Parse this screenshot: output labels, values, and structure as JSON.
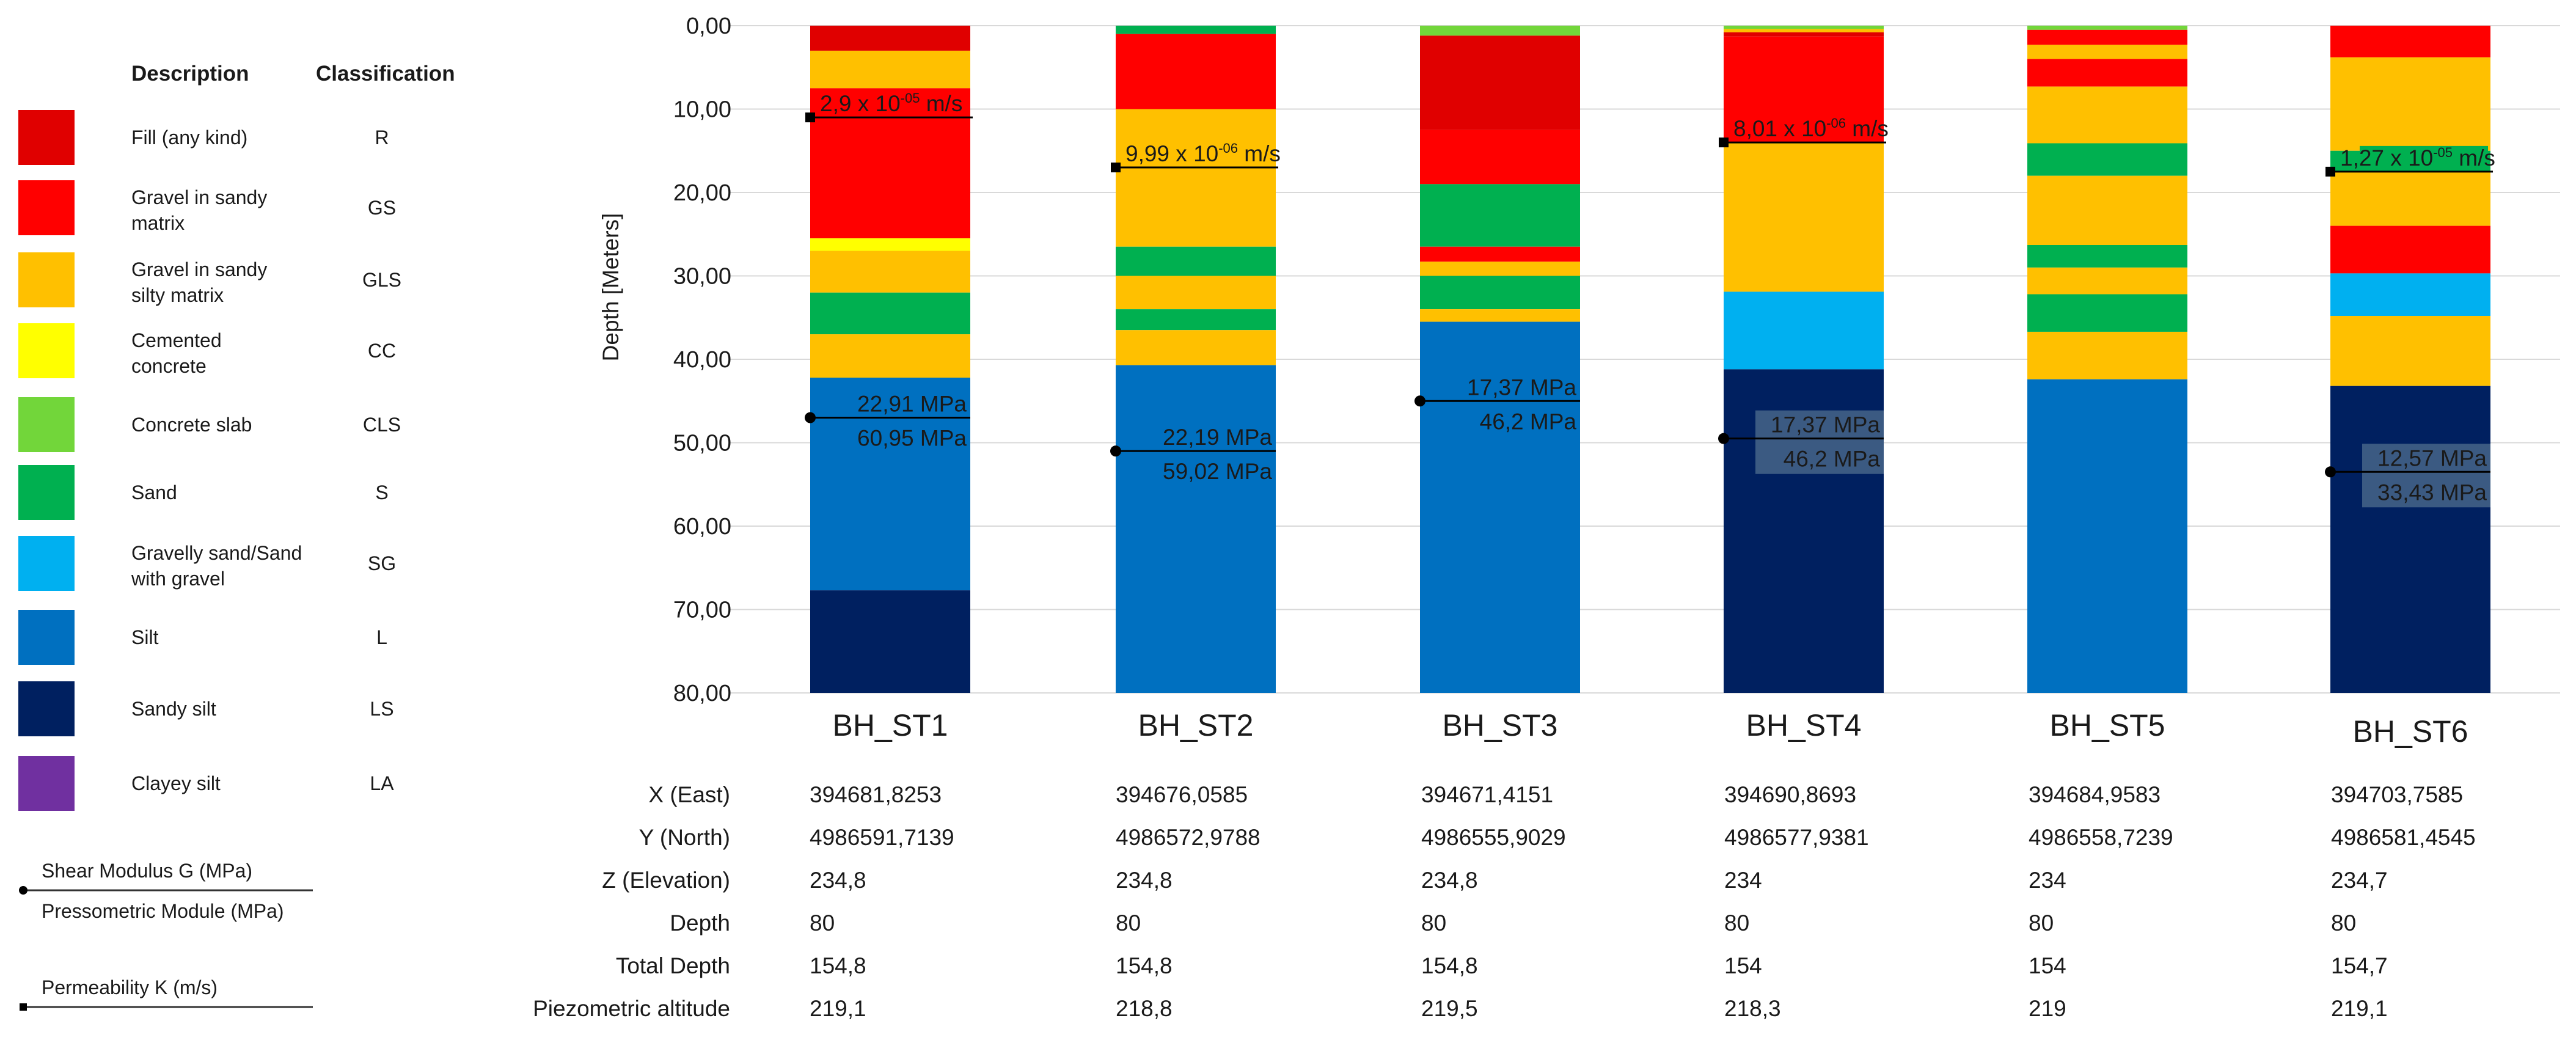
{
  "chart_data": {
    "type": "bar",
    "subtype": "stacked-borehole-columns",
    "ylabel": "Depth [Meters]",
    "ylim": [
      0,
      80
    ],
    "y_inverted": true,
    "y_ticks": [
      "0,00",
      "10,00",
      "20,00",
      "30,00",
      "40,00",
      "50,00",
      "60,00",
      "70,00",
      "80,00"
    ],
    "grid": true,
    "categories": [
      "BH_ST1",
      "BH_ST2",
      "BH_ST3",
      "BH_ST4",
      "BH_ST5",
      "BH_ST6"
    ],
    "legend": {
      "header_description": "Description",
      "header_classification": "Classification",
      "items": [
        {
          "code": "R",
          "description": "Fill (any kind)",
          "color": "#E00000"
        },
        {
          "code": "GS",
          "description": "Gravel in sandy matrix",
          "color": "#FF0000"
        },
        {
          "code": "GLS",
          "description": "Gravel in sandy silty matrix",
          "color": "#FFC000"
        },
        {
          "code": "CC",
          "description": "Cemented concrete",
          "color": "#FFFF00"
        },
        {
          "code": "CLS",
          "description": "Concrete slab",
          "color": "#72D63A"
        },
        {
          "code": "S",
          "description": "Sand",
          "color": "#00B050"
        },
        {
          "code": "SG",
          "description": "Gravelly sand/Sand with gravel",
          "color": "#00B0F0"
        },
        {
          "code": "L",
          "description": "Silt",
          "color": "#0070C0"
        },
        {
          "code": "LS",
          "description": "Sandy silt",
          "color": "#002060"
        },
        {
          "code": "LA",
          "description": "Clayey silt",
          "color": "#7030A0"
        }
      ],
      "shear_label": "Shear Modulus G (MPa)",
      "pressiometric_label": "Pressometric Module (MPa)",
      "permeability_label": "Permeability K (m/s)"
    },
    "boreholes": [
      {
        "name": "BH_ST1",
        "layers": [
          {
            "code": "R",
            "top": 0,
            "bottom": 3
          },
          {
            "code": "GLS",
            "top": 3,
            "bottom": 7.5
          },
          {
            "code": "GS",
            "top": 7.5,
            "bottom": 25.5
          },
          {
            "code": "CC",
            "top": 25.5,
            "bottom": 27
          },
          {
            "code": "GLS",
            "top": 27,
            "bottom": 32
          },
          {
            "code": "S",
            "top": 32,
            "bottom": 37
          },
          {
            "code": "GLS",
            "top": 37,
            "bottom": 42.2
          },
          {
            "code": "L",
            "top": 42.2,
            "bottom": 67.7
          },
          {
            "code": "LS",
            "top": 67.7,
            "bottom": 80
          }
        ],
        "permeability": {
          "depth": 11,
          "mantissa": "2,9",
          "exponent": "-05",
          "unit": "m/s"
        },
        "modulus": {
          "depth": 47,
          "shear": "22,91 MPa",
          "pressiometric": "60,95 MPa"
        }
      },
      {
        "name": "BH_ST2",
        "layers": [
          {
            "code": "S",
            "top": 0,
            "bottom": 1
          },
          {
            "code": "GS",
            "top": 1,
            "bottom": 10
          },
          {
            "code": "GLS",
            "top": 10,
            "bottom": 26.5
          },
          {
            "code": "S",
            "top": 26.5,
            "bottom": 30
          },
          {
            "code": "GLS",
            "top": 30,
            "bottom": 34
          },
          {
            "code": "S",
            "top": 34,
            "bottom": 36.5
          },
          {
            "code": "GLS",
            "top": 36.5,
            "bottom": 40.7
          },
          {
            "code": "L",
            "top": 40.7,
            "bottom": 80
          }
        ],
        "permeability": {
          "depth": 17,
          "mantissa": "9,99",
          "exponent": "-06",
          "unit": "m/s"
        },
        "modulus": {
          "depth": 51,
          "shear": "22,19 MPa",
          "pressiometric": "59,02 MPa"
        }
      },
      {
        "name": "BH_ST3",
        "layers": [
          {
            "code": "CLS",
            "top": 0,
            "bottom": 1.2
          },
          {
            "code": "R",
            "top": 1.2,
            "bottom": 12.5
          },
          {
            "code": "GS",
            "top": 12.5,
            "bottom": 19
          },
          {
            "code": "S",
            "top": 19,
            "bottom": 26.5
          },
          {
            "code": "GS",
            "top": 26.5,
            "bottom": 28.3
          },
          {
            "code": "GLS",
            "top": 28.3,
            "bottom": 30
          },
          {
            "code": "S",
            "top": 30,
            "bottom": 34
          },
          {
            "code": "GLS",
            "top": 34,
            "bottom": 35.5
          },
          {
            "code": "L",
            "top": 35.5,
            "bottom": 80
          }
        ],
        "permeability": null,
        "modulus": {
          "depth": 45,
          "shear": "17,37 MPa",
          "pressiometric": "46,2 MPa"
        }
      },
      {
        "name": "BH_ST4",
        "layers": [
          {
            "code": "CLS",
            "top": 0,
            "bottom": 0.4
          },
          {
            "code": "GLS",
            "top": 0.4,
            "bottom": 0.8
          },
          {
            "code": "R",
            "top": 0.8,
            "bottom": 1.3
          },
          {
            "code": "GS",
            "top": 1.3,
            "bottom": 14
          },
          {
            "code": "GLS",
            "top": 14,
            "bottom": 31.9
          },
          {
            "code": "SG",
            "top": 31.9,
            "bottom": 41.2
          },
          {
            "code": "LS",
            "top": 41.2,
            "bottom": 80
          }
        ],
        "permeability": {
          "depth": 14,
          "mantissa": "8,01",
          "exponent": "-06",
          "unit": "m/s"
        },
        "modulus": {
          "depth": 49.5,
          "shear": "17,37 MPa",
          "pressiometric": "46,2 MPa"
        }
      },
      {
        "name": "BH_ST5",
        "layers": [
          {
            "code": "CLS",
            "top": 0,
            "bottom": 0.5
          },
          {
            "code": "GS",
            "top": 0.5,
            "bottom": 2.3
          },
          {
            "code": "GLS",
            "top": 2.3,
            "bottom": 4
          },
          {
            "code": "GS",
            "top": 4,
            "bottom": 7.3
          },
          {
            "code": "GLS",
            "top": 7.3,
            "bottom": 14.1
          },
          {
            "code": "S",
            "top": 14.1,
            "bottom": 18
          },
          {
            "code": "GLS",
            "top": 18,
            "bottom": 26.3
          },
          {
            "code": "S",
            "top": 26.3,
            "bottom": 29
          },
          {
            "code": "GLS",
            "top": 29,
            "bottom": 32.2
          },
          {
            "code": "S",
            "top": 32.2,
            "bottom": 36.7
          },
          {
            "code": "GLS",
            "top": 36.7,
            "bottom": 42.4
          },
          {
            "code": "L",
            "top": 42.4,
            "bottom": 80
          }
        ],
        "permeability": null,
        "modulus": null
      },
      {
        "name": "BH_ST6",
        "layers": [
          {
            "code": "GS",
            "top": 0,
            "bottom": 3.8
          },
          {
            "code": "GLS",
            "top": 3.8,
            "bottom": 15
          },
          {
            "code": "S",
            "top": 15,
            "bottom": 17.5
          },
          {
            "code": "GLS",
            "top": 17.5,
            "bottom": 24
          },
          {
            "code": "GS",
            "top": 24,
            "bottom": 29.7
          },
          {
            "code": "SG",
            "top": 29.7,
            "bottom": 34.8
          },
          {
            "code": "GLS",
            "top": 34.8,
            "bottom": 43.2
          },
          {
            "code": "LS",
            "top": 43.2,
            "bottom": 80
          }
        ],
        "permeability": {
          "depth": 17.5,
          "mantissa": "1,27",
          "exponent": "-05",
          "unit": "m/s"
        },
        "modulus": {
          "depth": 53.5,
          "shear": "12,57 MPa",
          "pressiometric": "33,43 MPa"
        }
      }
    ],
    "table": {
      "rows": [
        {
          "label": "X (East)",
          "values": [
            "394681,8253",
            "394676,0585",
            "394671,4151",
            "394690,8693",
            "394684,9583",
            "394703,7585"
          ]
        },
        {
          "label": "Y (North)",
          "values": [
            "4986591,7139",
            "4986572,9788",
            "4986555,9029",
            "4986577,9381",
            "4986558,7239",
            "4986581,4545"
          ]
        },
        {
          "label": "Z (Elevation)",
          "values": [
            "234,8",
            "234,8",
            "234,8",
            "234",
            "234",
            "234,7"
          ]
        },
        {
          "label": "Depth",
          "values": [
            "80",
            "80",
            "80",
            "80",
            "80",
            "80"
          ]
        },
        {
          "label": "Total Depth",
          "values": [
            "154,8",
            "154,8",
            "154,8",
            "154",
            "154",
            "154,7"
          ]
        },
        {
          "label": "Piezometric altitude",
          "values": [
            "219,1",
            "218,8",
            "219,5",
            "218,3",
            "219",
            "219,1"
          ]
        }
      ]
    }
  }
}
